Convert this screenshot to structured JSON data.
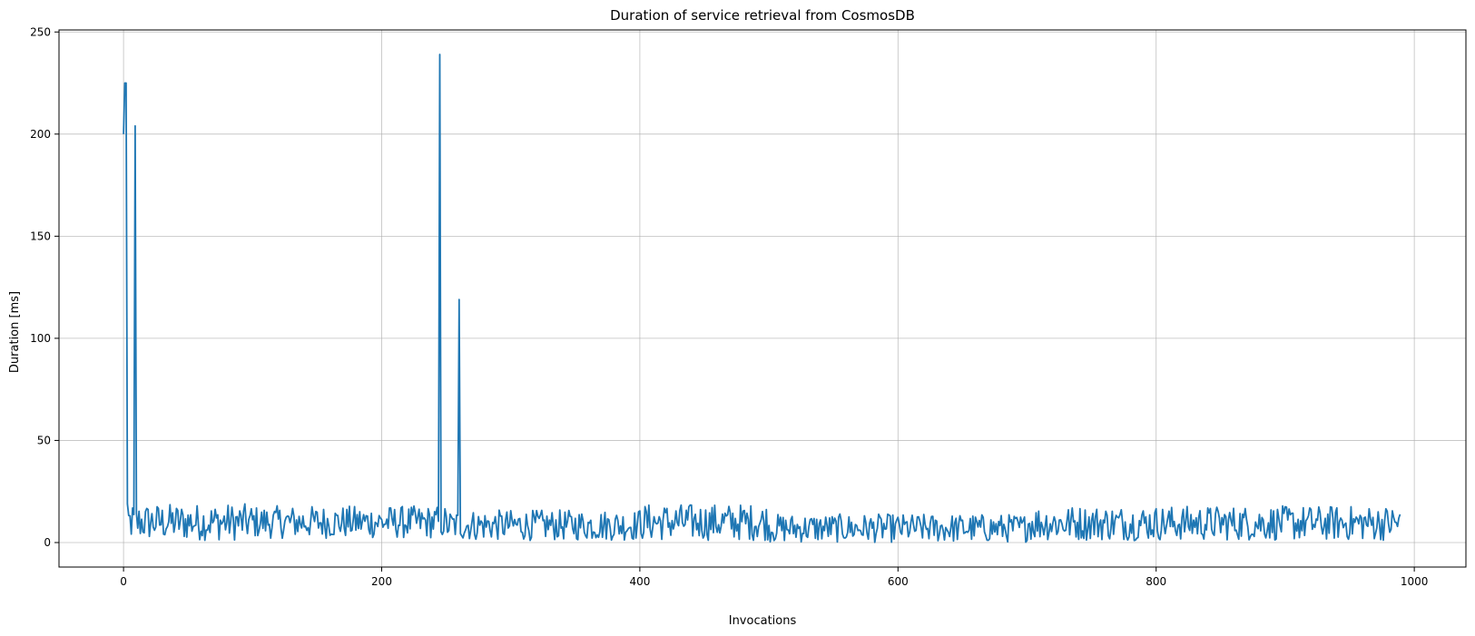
{
  "chart_data": {
    "type": "line",
    "title": "Duration of service retrieval from CosmosDB",
    "xlabel": "Invocations",
    "ylabel": "Duration [ms]",
    "xlim": [
      -50,
      1040
    ],
    "ylim": [
      -12,
      251
    ],
    "xticks": [
      0,
      200,
      400,
      600,
      800,
      1000
    ],
    "yticks": [
      0,
      50,
      100,
      150,
      200,
      250
    ],
    "grid": true,
    "color": "#1f77b4",
    "n_points": 990,
    "spikes": [
      {
        "x": 0,
        "y": 200
      },
      {
        "x": 1,
        "y": 225
      },
      {
        "x": 2,
        "y": 225
      },
      {
        "x": 9,
        "y": 204
      },
      {
        "x": 245,
        "y": 239
      },
      {
        "x": 260,
        "y": 119
      }
    ],
    "baseline_segments": [
      {
        "from": 0,
        "to": 100,
        "low": 1,
        "high": 19
      },
      {
        "from": 100,
        "to": 250,
        "low": 2,
        "high": 18
      },
      {
        "from": 250,
        "to": 400,
        "low": 1,
        "high": 16
      },
      {
        "from": 400,
        "to": 500,
        "low": 1,
        "high": 19
      },
      {
        "from": 500,
        "to": 700,
        "low": 0,
        "high": 14
      },
      {
        "from": 700,
        "to": 990,
        "low": 1,
        "high": 18
      }
    ]
  }
}
